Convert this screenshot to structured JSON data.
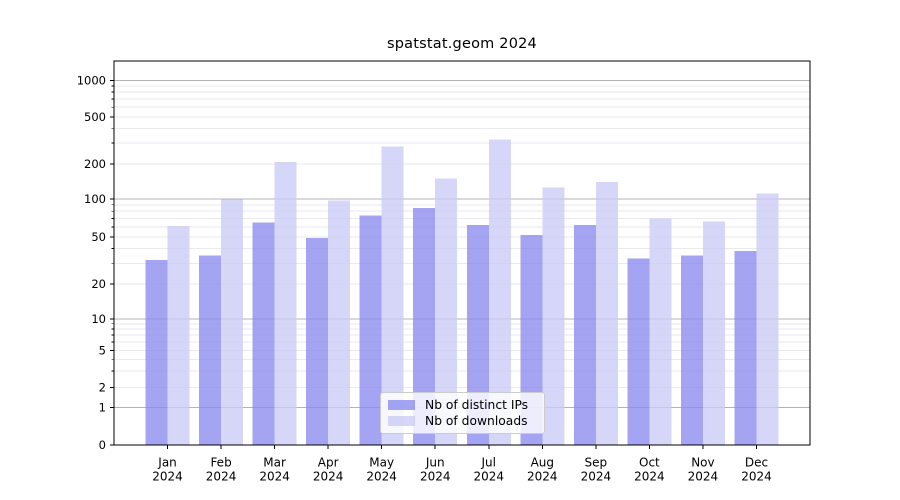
{
  "title": "spatstat.geom 2024",
  "chart_data": {
    "type": "bar",
    "title": "spatstat.geom 2024",
    "months": [
      "Jan",
      "Feb",
      "Mar",
      "Apr",
      "May",
      "Jun",
      "Jul",
      "Aug",
      "Sep",
      "Oct",
      "Nov",
      "Dec"
    ],
    "year": "2024",
    "categories": [
      "Jan 2024",
      "Feb 2024",
      "Mar 2024",
      "Apr 2024",
      "May 2024",
      "Jun 2024",
      "Jul 2024",
      "Aug 2024",
      "Sep 2024",
      "Oct 2024",
      "Nov 2024",
      "Dec 2024"
    ],
    "series": [
      {
        "name": "Nb of distinct IPs",
        "color": "#8a8aee",
        "values": [
          32,
          35,
          65,
          49,
          74,
          85,
          62,
          52,
          62,
          33,
          35,
          38
        ]
      },
      {
        "name": "Nb of downloads",
        "color": "#cacaf6",
        "values": [
          61,
          99,
          208,
          97,
          281,
          150,
          322,
          125,
          140,
          70,
          66,
          112
        ]
      }
    ],
    "bar_alpha": 0.78,
    "yscale": "pseudo-log",
    "yticks": [
      0,
      1,
      2,
      5,
      10,
      20,
      50,
      100,
      200,
      500,
      1000
    ],
    "ylim": [
      0,
      1450
    ],
    "xlabel": "",
    "ylabel": "",
    "grid": {
      "show": true,
      "orientation": "horizontal",
      "major_color": "#b3b3b3",
      "minor_color": "#e9e9ee"
    },
    "axis_color": "#000000",
    "legend_position": "bottom-center"
  }
}
